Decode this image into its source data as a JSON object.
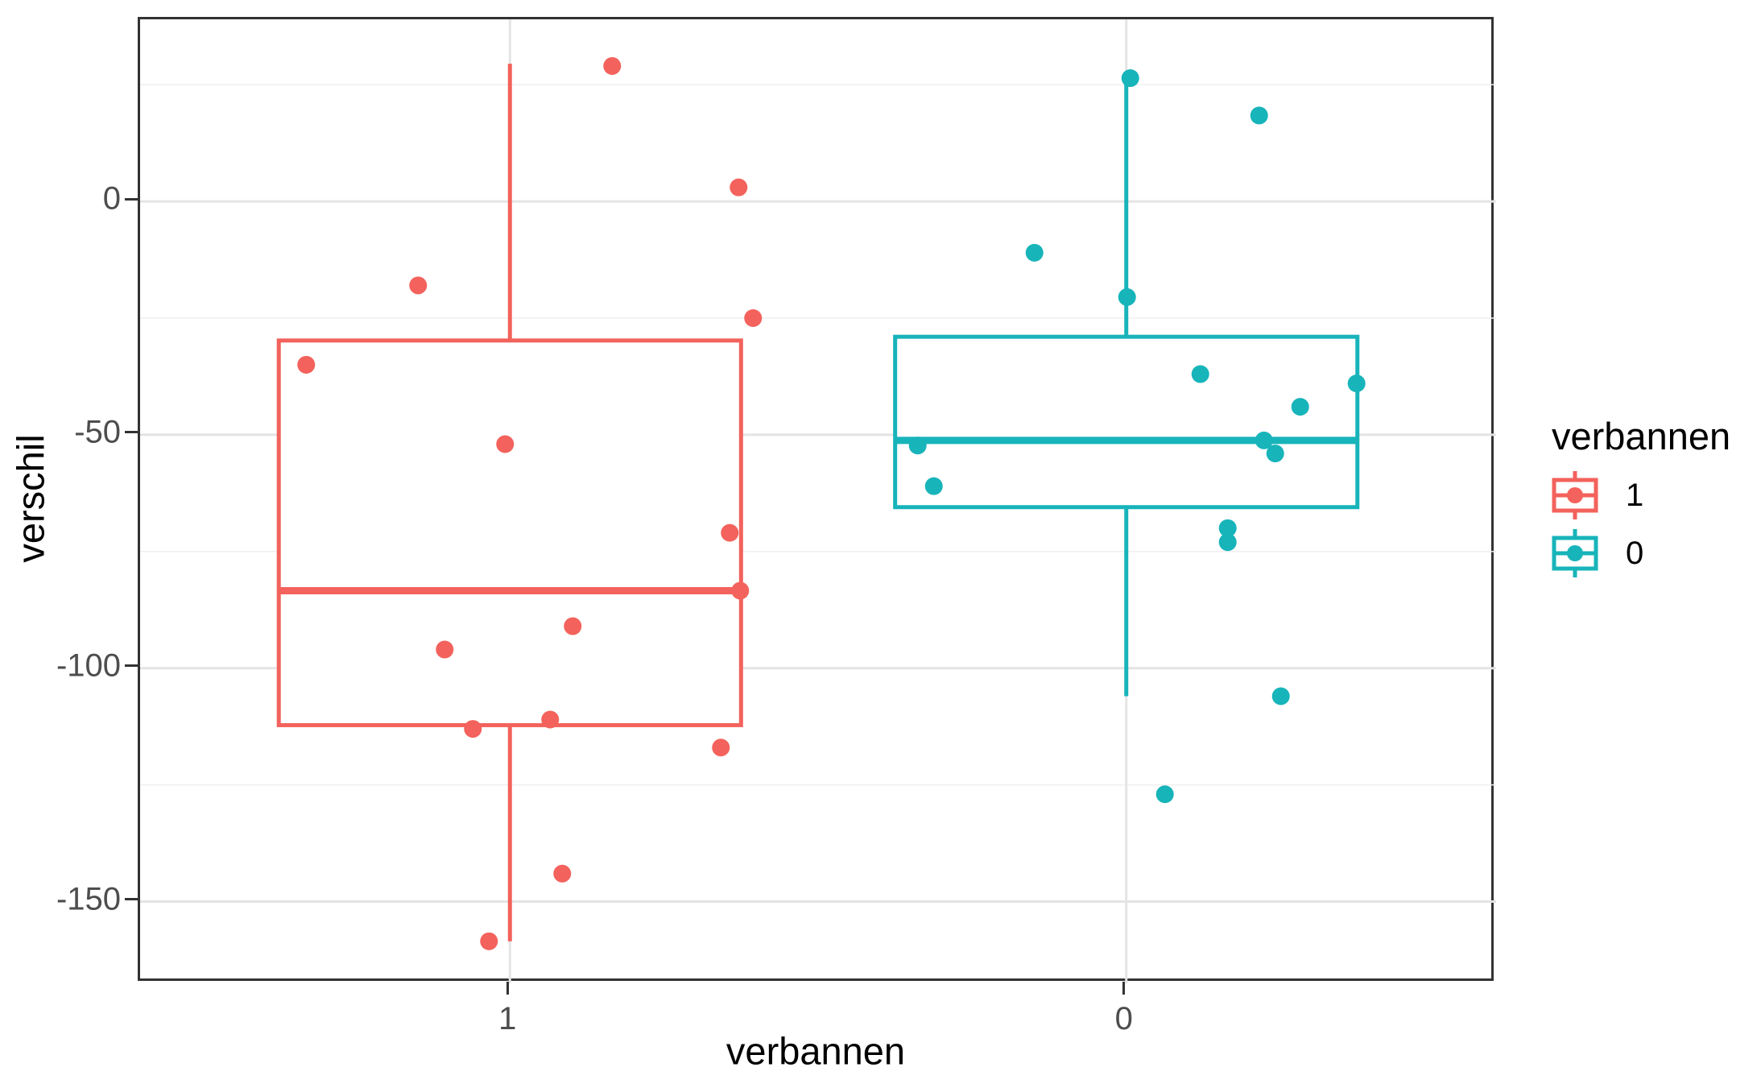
{
  "style": {
    "grid_major_color": "#E4E4E4",
    "grid_minor_color": "#EFEFEF",
    "panel_border_color": "#333333",
    "tick_color": "#333333",
    "tick_label_color": "#4D4D4D",
    "title_color": "#000000",
    "background": "#FFFFFF"
  },
  "legend": {
    "title": "verbannen",
    "position": "right",
    "entries": [
      {
        "label": "1",
        "color": "#F3625C"
      },
      {
        "label": "0",
        "color": "#17B4BA"
      }
    ]
  },
  "chart_data": {
    "type": "boxplot",
    "subtype": "boxplot-with-jittered-points",
    "orientation": "vertical",
    "x_label": "verbannen",
    "y_label": "verschil",
    "categories": [
      "1",
      "0"
    ],
    "x_tick_labels": [
      "1",
      "0"
    ],
    "y_ticks": [
      0,
      -50,
      -100,
      -150
    ],
    "y_tick_labels": [
      "0",
      "-50",
      "-100",
      "-150"
    ],
    "y_minor_ticks": [
      25,
      -25,
      -75,
      -125
    ],
    "ylim": [
      -167.5,
      39
    ],
    "grid": "horizontal major+minor, vertical major at categories",
    "legend_position": "right",
    "series": [
      {
        "name": "1",
        "color": "#F3625C",
        "box": {
          "whisker_low": -158.5,
          "q1": -112.2,
          "median": -83.4,
          "q3": -29.8,
          "whisker_high": 29.5
        },
        "points": [
          {
            "y": 29,
            "jx": 127
          },
          {
            "y": 3,
            "jx": 284
          },
          {
            "y": -18,
            "jx": -114
          },
          {
            "y": -25,
            "jx": 302
          },
          {
            "y": -35,
            "jx": -253
          },
          {
            "y": -52,
            "jx": -6
          },
          {
            "y": -71,
            "jx": 273
          },
          {
            "y": -83.4,
            "jx": 286
          },
          {
            "y": -91,
            "jx": 78
          },
          {
            "y": -96,
            "jx": -81
          },
          {
            "y": -111,
            "jx": 50
          },
          {
            "y": -113,
            "jx": -46
          },
          {
            "y": -117,
            "jx": 262
          },
          {
            "y": -144,
            "jx": 65
          },
          {
            "y": -158.5,
            "jx": -26
          }
        ]
      },
      {
        "name": "0",
        "color": "#17B4BA",
        "box": {
          "whisker_low": -106,
          "q1": -65.5,
          "median": -51.2,
          "q3": -29,
          "whisker_high": 26.4
        },
        "points": [
          {
            "y": 26.4,
            "jx": 5
          },
          {
            "y": 18.4,
            "jx": 165
          },
          {
            "y": -11,
            "jx": -114
          },
          {
            "y": -20.5,
            "jx": 1
          },
          {
            "y": -37,
            "jx": 92
          },
          {
            "y": -39,
            "jx": 286
          },
          {
            "y": -44,
            "jx": 216
          },
          {
            "y": -51.2,
            "jx": 171
          },
          {
            "y": -52.3,
            "jx": -259
          },
          {
            "y": -54,
            "jx": 185
          },
          {
            "y": -61,
            "jx": -239
          },
          {
            "y": -70,
            "jx": 126
          },
          {
            "y": -73,
            "jx": 126
          },
          {
            "y": -106,
            "jx": 192
          },
          {
            "y": -127,
            "jx": 48
          }
        ]
      }
    ]
  }
}
